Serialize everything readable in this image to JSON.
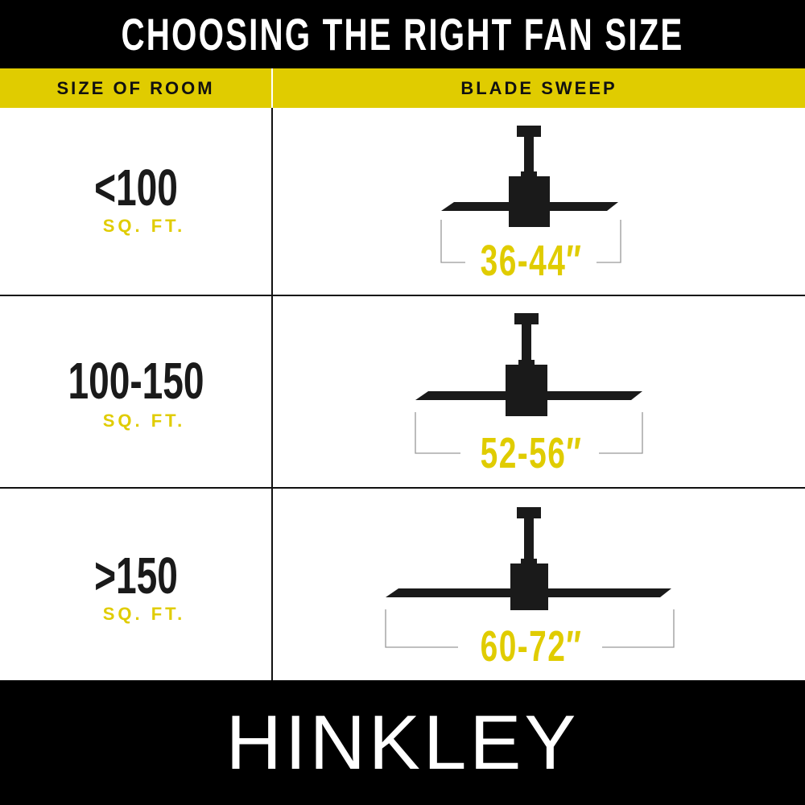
{
  "title": "CHOOSING THE RIGHT FAN SIZE",
  "columns": {
    "room": "SIZE OF ROOM",
    "sweep": "BLADE SWEEP"
  },
  "rows": [
    {
      "size": "<100",
      "unit": "SQ. FT.",
      "sweep": "36-44″"
    },
    {
      "size": "100-150",
      "unit": "SQ. FT.",
      "sweep": "52-56″"
    },
    {
      "size": ">150",
      "unit": "SQ. FT.",
      "sweep": "60-72″"
    }
  ],
  "brand": "HINKLEY",
  "colors": {
    "accent": "#e0cc00",
    "dark": "#1a1a1a",
    "background": "#ffffff"
  },
  "icons": [
    "ceiling-fan-small-icon",
    "ceiling-fan-medium-icon",
    "ceiling-fan-large-icon"
  ]
}
